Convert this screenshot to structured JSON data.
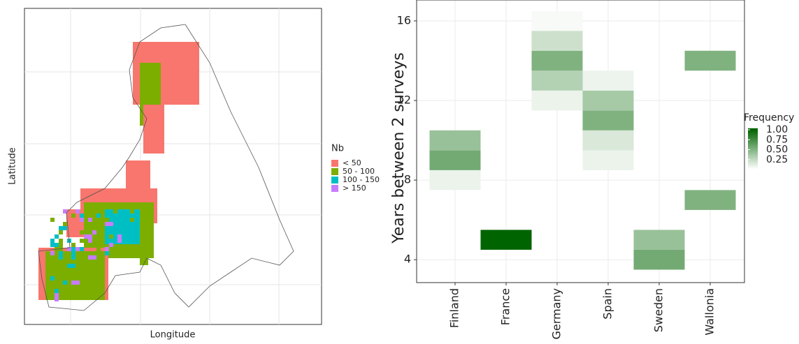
{
  "chart_data": [
    {
      "type": "map",
      "xlabel": "Longitude",
      "ylabel": "Latitude",
      "legend_title": "Nb",
      "series": [
        {
          "name": "< 50",
          "color": "#f8766d"
        },
        {
          "name": "50 - 100",
          "color": "#7cae00"
        },
        {
          "name": "100 - 150",
          "color": "#00bfc4"
        },
        {
          "name": "> 150",
          "color": "#c77cff"
        }
      ]
    },
    {
      "type": "heatmap",
      "ylabel": "Years between 2 surveys",
      "legend_title": "Frequency",
      "ylim": [
        2.85,
        17.05
      ],
      "yticks": [
        4,
        8,
        12,
        16
      ],
      "grid": true,
      "low_color": "#ffffff",
      "high_color": "#006400",
      "fill_lim": [
        0,
        1
      ],
      "fill_ticks": [
        {
          "value": 1,
          "label": "1.00"
        },
        {
          "value": 0.75,
          "label": "0.75"
        },
        {
          "value": 0.5,
          "label": "0.50"
        },
        {
          "value": 0.25,
          "label": "0.25"
        }
      ],
      "series": [
        {
          "name": "Finland",
          "tiles": [
            {
              "y": 8,
              "value": 0.08
            },
            {
              "y": 9,
              "value": 0.55
            },
            {
              "y": 10,
              "value": 0.4
            }
          ]
        },
        {
          "name": "France",
          "tiles": [
            {
              "y": 5,
              "value": 1
            }
          ]
        },
        {
          "name": "Germany",
          "tiles": [
            {
              "y": 12,
              "value": 0.08
            },
            {
              "y": 13,
              "value": 0.3
            },
            {
              "y": 14,
              "value": 0.5
            },
            {
              "y": 15,
              "value": 0.2
            },
            {
              "y": 16,
              "value": 0.03
            }
          ]
        },
        {
          "name": "Spain",
          "tiles": [
            {
              "y": 9,
              "value": 0.08
            },
            {
              "y": 10,
              "value": 0.15
            },
            {
              "y": 11,
              "value": 0.5
            },
            {
              "y": 12,
              "value": 0.35
            },
            {
              "y": 13,
              "value": 0.07
            }
          ]
        },
        {
          "name": "Sweden",
          "tiles": [
            {
              "y": 4,
              "value": 0.55
            },
            {
              "y": 5,
              "value": 0.4
            }
          ]
        },
        {
          "name": "Wallonia",
          "tiles": [
            {
              "y": 7,
              "value": 0.5
            },
            {
              "y": 14,
              "value": 0.5
            }
          ]
        }
      ]
    }
  ]
}
